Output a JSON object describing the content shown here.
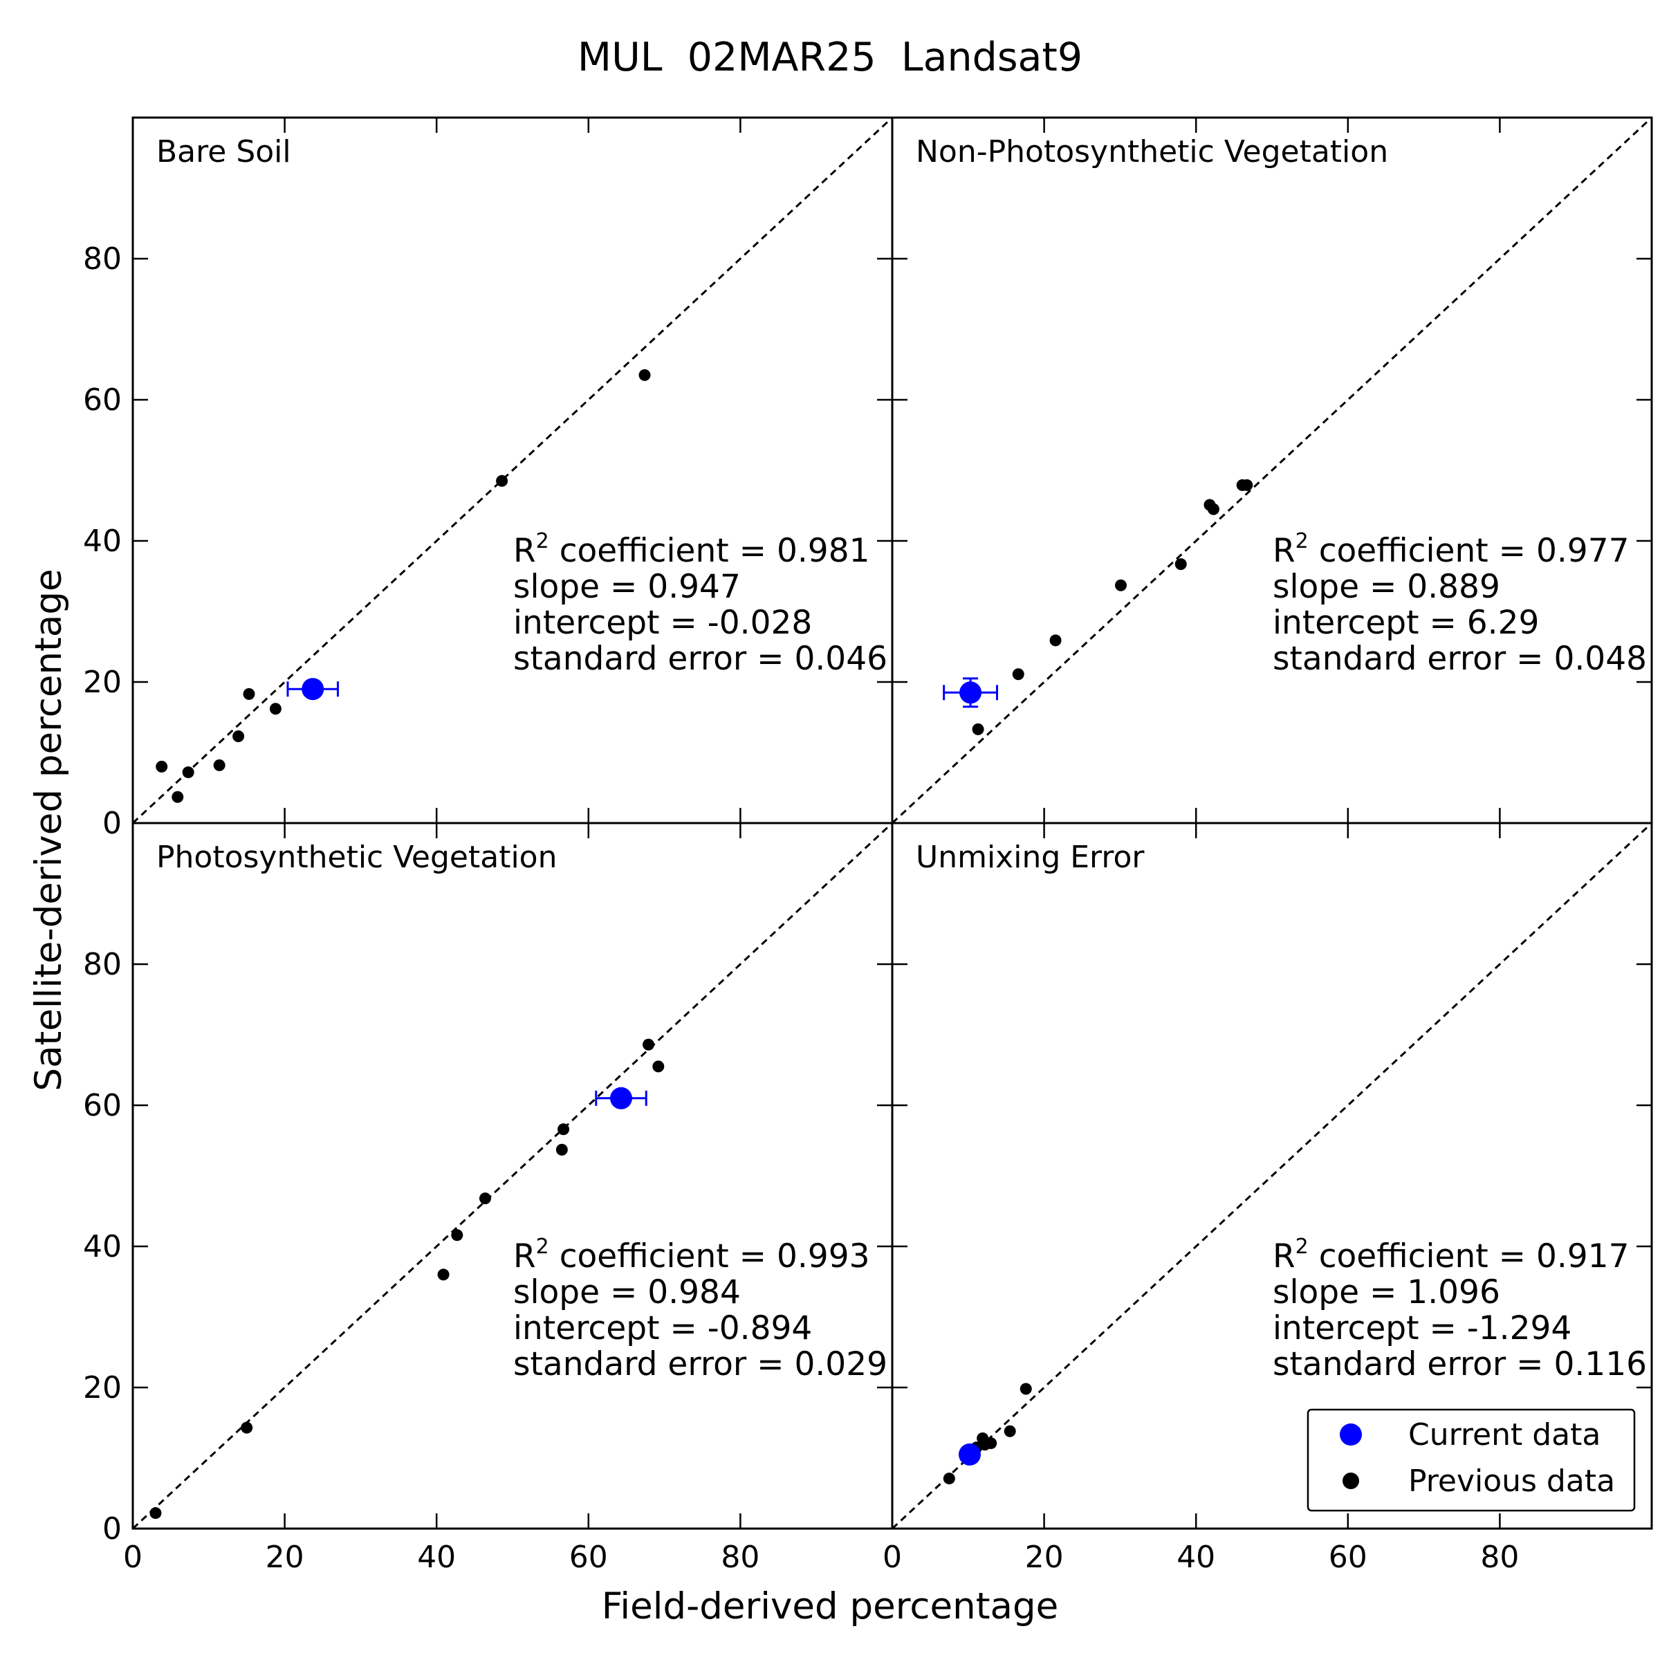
{
  "chart_data": {
    "type": "scatter",
    "title": "MUL  02MAR25  Landsat9",
    "xlabel": "Field-derived percentage",
    "ylabel": "Satellite-derived percentage",
    "xlim": [
      0,
      100
    ],
    "ylim": [
      0,
      100
    ],
    "xticks": [
      0,
      20,
      40,
      60,
      80
    ],
    "yticks": [
      0,
      20,
      40,
      60,
      80
    ],
    "reference_line": "1:1 dashed",
    "legend": {
      "placement": "lower-right of Unmixing Error panel",
      "entries": [
        {
          "label": "Current data",
          "color": "#0000ff"
        },
        {
          "label": "Previous data",
          "color": "#000000"
        }
      ]
    },
    "panels": [
      {
        "name": "Bare Soil",
        "stats": {
          "r2_prefix": "R",
          "r2_sup": "2",
          "r2": " coefficient = 0.981",
          "slope": "slope = 0.947",
          "intercept": "intercept = -0.028",
          "stderr": "standard error = 0.046"
        },
        "current": {
          "x": 23.7,
          "y": 19.0,
          "xerr": 3.3,
          "yerr": 1.0
        },
        "previous": [
          [
            3.8,
            8.0
          ],
          [
            5.9,
            3.7
          ],
          [
            7.3,
            7.2
          ],
          [
            11.4,
            8.2
          ],
          [
            13.9,
            12.3
          ],
          [
            15.3,
            18.3
          ],
          [
            18.8,
            16.2
          ],
          [
            48.6,
            48.5
          ],
          [
            67.4,
            63.5
          ]
        ]
      },
      {
        "name": "Non-Photosynthetic Vegetation",
        "stats": {
          "r2_prefix": "R",
          "r2_sup": "2",
          "r2": " coefficient = 0.977",
          "slope": "slope = 0.889",
          "intercept": "intercept = 6.29",
          "stderr": "standard error = 0.048"
        },
        "current": {
          "x": 10.3,
          "y": 18.5,
          "xerr": 3.5,
          "yerr": 2.0
        },
        "previous": [
          [
            11.3,
            13.3
          ],
          [
            16.6,
            21.1
          ],
          [
            21.5,
            25.9
          ],
          [
            30.1,
            33.7
          ],
          [
            38.0,
            36.7
          ],
          [
            41.8,
            45.1
          ],
          [
            42.3,
            44.5
          ],
          [
            46.1,
            47.9
          ],
          [
            46.7,
            47.9
          ]
        ]
      },
      {
        "name": "Photosynthetic Vegetation",
        "stats": {
          "r2_prefix": "R",
          "r2_sup": "2",
          "r2": " coefficient = 0.993",
          "slope": "slope = 0.984",
          "intercept": "intercept = -0.894",
          "stderr": "standard error = 0.029"
        },
        "current": {
          "x": 64.3,
          "y": 61.0,
          "xerr": 3.3,
          "yerr": 1.0
        },
        "previous": [
          [
            3.0,
            2.2
          ],
          [
            15.0,
            14.3
          ],
          [
            40.9,
            36.0
          ],
          [
            42.7,
            41.6
          ],
          [
            46.4,
            46.8
          ],
          [
            56.5,
            53.7
          ],
          [
            56.7,
            56.6
          ],
          [
            67.9,
            68.6
          ],
          [
            69.2,
            65.5
          ]
        ]
      },
      {
        "name": "Unmixing Error",
        "stats": {
          "r2_prefix": "R",
          "r2_sup": "2",
          "r2": " coefficient = 0.917",
          "slope": "slope = 1.096",
          "intercept": "intercept = -1.294",
          "stderr": "standard error = 0.116"
        },
        "current": {
          "x": 10.2,
          "y": 10.5,
          "xerr": 0,
          "yerr": 0
        },
        "previous": [
          [
            7.5,
            7.1
          ],
          [
            11.1,
            11.5
          ],
          [
            11.9,
            12.8
          ],
          [
            12.2,
            11.9
          ],
          [
            13.0,
            12.1
          ],
          [
            15.5,
            13.8
          ],
          [
            17.6,
            19.8
          ]
        ]
      }
    ]
  }
}
